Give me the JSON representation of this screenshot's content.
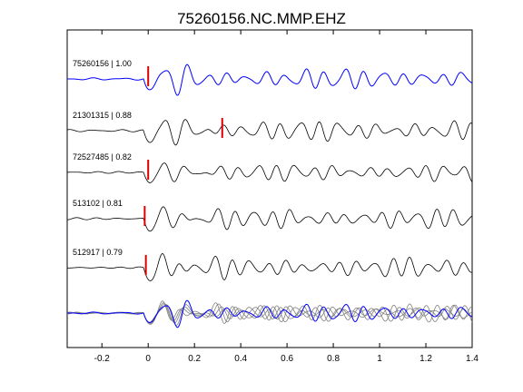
{
  "chart_data": {
    "type": "line",
    "title": "75260156.NC.MMP.EHZ",
    "xlabel": "",
    "ylabel": "",
    "xlim": [
      -0.35,
      1.4
    ],
    "x_ticks": [
      -0.2,
      0,
      0.2,
      0.4,
      0.6,
      0.8,
      1,
      1.2,
      1.4
    ],
    "x_tick_labels": [
      "-0.2",
      "0",
      "0.2",
      "0.4",
      "0.6",
      "0.8",
      "1",
      "1.2",
      "1.4"
    ],
    "y_ticks_shown": false,
    "grid": false,
    "traces": [
      {
        "label": "75260156 | 1.00",
        "color": "#0000ff",
        "pick_times": [
          0.0
        ]
      },
      {
        "label": "21301315 | 0.88",
        "color": "#000000",
        "pick_times": [
          0.32
        ]
      },
      {
        "label": "72527485 | 0.82",
        "color": "#000000",
        "pick_times": [
          0.0
        ]
      },
      {
        "label": "513102 | 0.81",
        "color": "#000000",
        "pick_times": [
          -0.015
        ]
      },
      {
        "label": "512917 | 0.79",
        "color": "#000000",
        "pick_times": [
          -0.01
        ]
      }
    ],
    "stack": {
      "label": "",
      "colors": [
        "#0000ff",
        "#808080"
      ]
    },
    "pick_color": "#dd0000"
  }
}
